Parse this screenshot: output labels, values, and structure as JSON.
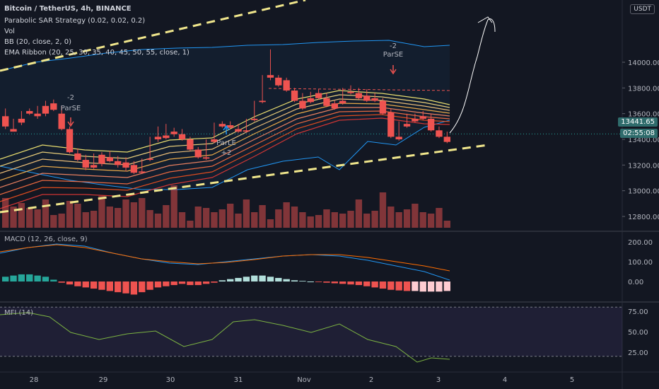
{
  "header": {
    "symbol_title": "Bitcoin / TetherUS, 4h, BINANCE",
    "indicators": [
      "Parabolic SAR Strategy (0.02, 0.02, 0.2)",
      "Vol",
      "BB (20, close, 2, 0)",
      "EMA Ribbon (20, 25, 30, 35, 40, 45, 50, 55, close, 1)"
    ],
    "currency": "USDT"
  },
  "price_axis": {
    "ticks": [
      "14000.00",
      "13800.00",
      "13600.00",
      "13400.00",
      "13200.00",
      "13000.00",
      "12800.00"
    ],
    "current_price": "13441.65",
    "countdown": "02:55:08"
  },
  "signals": [
    {
      "count": "-2",
      "label": "ParSE"
    },
    {
      "count": "-2",
      "label": "ParSE"
    },
    {
      "count": "+2",
      "label": "ParLE"
    }
  ],
  "macd": {
    "label": "MACD (12, 26, close, 9)",
    "ticks": [
      "200.00",
      "100.00",
      "0.00"
    ]
  },
  "mfi": {
    "label": "MFI (14)",
    "ticks": [
      "75.00",
      "50.00",
      "25.00"
    ]
  },
  "time_axis": {
    "labels": [
      "28",
      "29",
      "30",
      "31",
      "Nov",
      "2",
      "3",
      "4",
      "5"
    ]
  },
  "colors": {
    "background": "#131722",
    "bull": "#26a69a",
    "bear": "#ef5350",
    "accent": "#2962ff"
  }
}
